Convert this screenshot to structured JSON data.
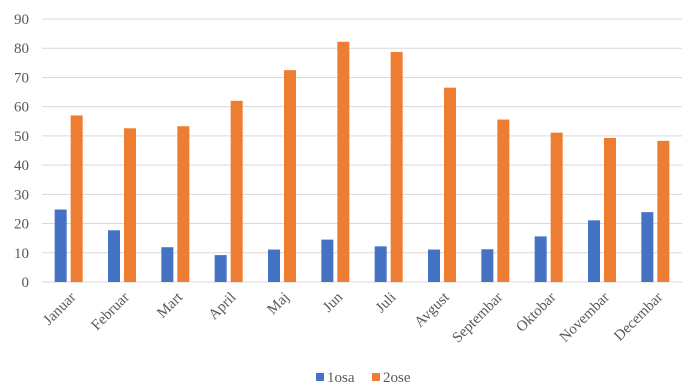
{
  "chart_data": {
    "type": "bar",
    "title": "",
    "xlabel": "",
    "ylabel": "",
    "ylim": [
      0,
      90
    ],
    "yticks": [
      0,
      10,
      20,
      30,
      40,
      50,
      60,
      70,
      80,
      90
    ],
    "grid": true,
    "legend_position": "bottom",
    "categories": [
      "Januar",
      "Februar",
      "Mart",
      "April",
      "Maj",
      "Jun",
      "Juli",
      "Avgust",
      "Septembar",
      "Oktobar",
      "Novembar",
      "Decembar"
    ],
    "series": [
      {
        "name": "1osa",
        "color": "#4472c4",
        "values": [
          24.8,
          17.7,
          11.9,
          9.2,
          11.1,
          14.5,
          12.2,
          11.1,
          11.2,
          15.6,
          21.1,
          23.9
        ]
      },
      {
        "name": "2ose",
        "color": "#ed7d31",
        "values": [
          57.0,
          52.6,
          53.3,
          62.0,
          72.5,
          82.2,
          78.7,
          66.5,
          55.6,
          51.1,
          49.3,
          48.3
        ]
      }
    ]
  }
}
